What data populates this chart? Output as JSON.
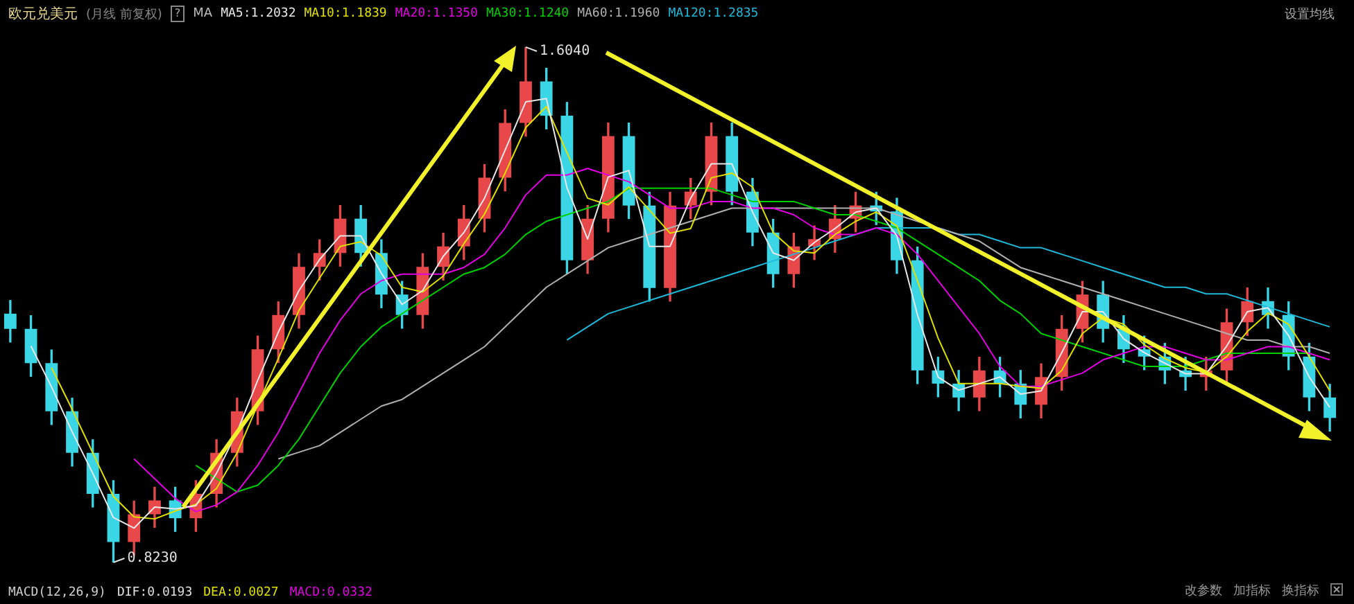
{
  "chart_data": {
    "type": "candlestick",
    "title": "欧元兑美元",
    "subtitle": "(月线 前复权)",
    "legend": "top left",
    "categories": [
      null,
      null,
      null,
      null,
      null,
      null,
      null,
      null,
      null,
      null,
      null,
      null,
      null,
      null,
      null,
      null,
      null,
      null,
      null,
      null,
      null,
      null,
      null,
      null,
      null,
      null,
      null,
      null,
      null,
      null,
      null,
      null,
      null,
      null,
      null,
      null,
      null,
      null,
      null,
      null,
      null,
      null,
      null,
      null,
      null,
      null,
      null,
      null,
      null,
      null,
      null,
      null,
      null,
      null,
      null,
      null,
      null,
      null,
      null,
      null,
      null,
      null,
      null,
      null,
      null
    ],
    "ohlc": [
      [
        1.2,
        1.22,
        1.157,
        1.177
      ],
      [
        1.177,
        1.197,
        1.105,
        1.125
      ],
      [
        1.125,
        1.145,
        1.032,
        1.052
      ],
      [
        1.052,
        1.072,
        0.969,
        0.989
      ],
      [
        0.989,
        1.009,
        0.907,
        0.927
      ],
      [
        0.927,
        0.947,
        0.823,
        0.854
      ],
      [
        0.854,
        0.916,
        0.834,
        0.896
      ],
      [
        0.896,
        0.937,
        0.876,
        0.917
      ],
      [
        0.917,
        0.937,
        0.87,
        0.89
      ],
      [
        0.89,
        0.947,
        0.87,
        0.927
      ],
      [
        0.927,
        1.009,
        0.907,
        0.989
      ],
      [
        0.989,
        1.072,
        0.969,
        1.052
      ],
      [
        1.052,
        1.166,
        1.032,
        1.146
      ],
      [
        1.146,
        1.218,
        1.126,
        1.198
      ],
      [
        1.198,
        1.291,
        1.178,
        1.271
      ],
      [
        1.271,
        1.312,
        1.251,
        1.292
      ],
      [
        1.292,
        1.364,
        1.272,
        1.344
      ],
      [
        1.344,
        1.364,
        1.272,
        1.292
      ],
      [
        1.292,
        1.312,
        1.209,
        1.229
      ],
      [
        1.229,
        1.249,
        1.178,
        1.198
      ],
      [
        1.198,
        1.291,
        1.178,
        1.271
      ],
      [
        1.271,
        1.322,
        1.251,
        1.302
      ],
      [
        1.302,
        1.364,
        1.282,
        1.344
      ],
      [
        1.344,
        1.426,
        1.324,
        1.406
      ],
      [
        1.406,
        1.509,
        1.386,
        1.489
      ],
      [
        1.489,
        1.604,
        1.469,
        1.552
      ],
      [
        1.552,
        1.572,
        1.48,
        1.5
      ],
      [
        1.5,
        1.52,
        1.261,
        1.281
      ],
      [
        1.281,
        1.364,
        1.261,
        1.344
      ],
      [
        1.344,
        1.489,
        1.324,
        1.469
      ],
      [
        1.469,
        1.489,
        1.344,
        1.364
      ],
      [
        1.364,
        1.384,
        1.219,
        1.239
      ],
      [
        1.239,
        1.384,
        1.219,
        1.364
      ],
      [
        1.364,
        1.405,
        1.344,
        1.385
      ],
      [
        1.385,
        1.489,
        1.365,
        1.469
      ],
      [
        1.469,
        1.489,
        1.365,
        1.385
      ],
      [
        1.385,
        1.405,
        1.303,
        1.323
      ],
      [
        1.323,
        1.343,
        1.24,
        1.26
      ],
      [
        1.26,
        1.322,
        1.24,
        1.302
      ],
      [
        1.302,
        1.333,
        1.282,
        1.313
      ],
      [
        1.313,
        1.364,
        1.293,
        1.344
      ],
      [
        1.344,
        1.384,
        1.324,
        1.364
      ],
      [
        1.364,
        1.384,
        1.335,
        1.355
      ],
      [
        1.355,
        1.375,
        1.261,
        1.281
      ],
      [
        1.281,
        1.301,
        1.094,
        1.114
      ],
      [
        1.114,
        1.134,
        1.074,
        1.094
      ],
      [
        1.094,
        1.114,
        1.053,
        1.073
      ],
      [
        1.073,
        1.134,
        1.053,
        1.114
      ],
      [
        1.114,
        1.134,
        1.074,
        1.094
      ],
      [
        1.094,
        1.114,
        1.042,
        1.062
      ],
      [
        1.062,
        1.124,
        1.042,
        1.104
      ],
      [
        1.104,
        1.197,
        1.084,
        1.177
      ],
      [
        1.177,
        1.249,
        1.157,
        1.229
      ],
      [
        1.229,
        1.249,
        1.157,
        1.177
      ],
      [
        1.177,
        1.197,
        1.126,
        1.146
      ],
      [
        1.146,
        1.166,
        1.115,
        1.135
      ],
      [
        1.135,
        1.155,
        1.094,
        1.114
      ],
      [
        1.114,
        1.134,
        1.084,
        1.104
      ],
      [
        1.104,
        1.134,
        1.084,
        1.114
      ],
      [
        1.114,
        1.207,
        1.094,
        1.187
      ],
      [
        1.187,
        1.239,
        1.167,
        1.219
      ],
      [
        1.219,
        1.239,
        1.178,
        1.198
      ],
      [
        1.198,
        1.218,
        1.115,
        1.135
      ],
      [
        1.135,
        1.155,
        1.053,
        1.073
      ],
      [
        1.073,
        1.093,
        1.022,
        1.042
      ]
    ],
    "series": [
      {
        "name": "MA5:1.2032",
        "type": "line",
        "color": "#e8e8e8",
        "values": [
          null,
          1.151,
          1.089,
          1.021,
          0.958,
          0.891,
          0.875,
          0.907,
          0.904,
          0.909,
          0.958,
          1.021,
          1.099,
          1.172,
          1.235,
          1.282,
          1.318,
          1.318,
          1.261,
          1.214,
          1.235,
          1.287,
          1.323,
          1.375,
          1.448,
          1.521,
          1.526,
          1.391,
          1.313,
          1.407,
          1.417,
          1.302,
          1.302,
          1.375,
          1.427,
          1.427,
          1.354,
          1.292,
          1.281,
          1.308,
          1.329,
          1.354,
          1.36,
          1.318,
          1.198,
          1.104,
          1.084,
          1.094,
          1.104,
          1.078,
          1.083,
          1.141,
          1.203,
          1.203,
          1.162,
          1.141,
          1.125,
          1.109,
          1.109,
          1.151,
          1.203,
          1.209,
          1.167,
          1.104,
          1.058
        ]
      },
      {
        "name": "MA10:1.1839",
        "type": "line",
        "color": "#e0e000",
        "values": [
          null,
          null,
          1.118,
          1.055,
          0.989,
          0.923,
          0.892,
          0.889,
          0.901,
          0.911,
          0.935,
          0.989,
          1.062,
          1.132,
          1.205,
          1.254,
          1.302,
          1.309,
          1.288,
          1.24,
          1.233,
          1.257,
          1.306,
          1.351,
          1.413,
          1.482,
          1.514,
          1.444,
          1.375,
          1.365,
          1.392,
          1.357,
          1.322,
          1.329,
          1.406,
          1.413,
          1.392,
          1.323,
          1.295,
          1.292,
          1.32,
          1.34,
          1.354,
          1.333,
          1.25,
          1.163,
          1.094,
          1.094,
          1.094,
          1.09,
          1.087,
          1.114,
          1.17,
          1.194,
          1.184,
          1.153,
          1.132,
          1.118,
          1.111,
          1.135,
          1.173,
          1.201,
          1.184,
          1.135,
          1.083
        ]
      },
      {
        "name": "MA20:1.1350",
        "type": "line",
        "color": "#e000e0",
        "values": [
          null,
          null,
          null,
          null,
          null,
          null,
          0.98,
          0.95,
          0.92,
          0.9,
          0.91,
          0.93,
          0.97,
          1.02,
          1.08,
          1.14,
          1.19,
          1.23,
          1.25,
          1.26,
          1.26,
          1.26,
          1.27,
          1.29,
          1.33,
          1.38,
          1.41,
          1.41,
          1.42,
          1.41,
          1.4,
          1.38,
          1.36,
          1.36,
          1.37,
          1.37,
          1.36,
          1.36,
          1.35,
          1.33,
          1.32,
          1.32,
          1.33,
          1.32,
          1.29,
          1.25,
          1.21,
          1.17,
          1.12,
          1.09,
          1.09,
          1.1,
          1.11,
          1.13,
          1.14,
          1.15,
          1.15,
          1.14,
          1.13,
          1.13,
          1.14,
          1.15,
          1.15,
          1.14,
          1.13
        ]
      },
      {
        "name": "MA30:1.1240",
        "type": "line",
        "color": "#00d000",
        "values": [
          null,
          null,
          null,
          null,
          null,
          null,
          null,
          null,
          null,
          0.97,
          0.95,
          0.93,
          0.94,
          0.97,
          1.01,
          1.06,
          1.11,
          1.15,
          1.18,
          1.2,
          1.22,
          1.24,
          1.26,
          1.27,
          1.29,
          1.32,
          1.34,
          1.35,
          1.36,
          1.37,
          1.39,
          1.39,
          1.39,
          1.39,
          1.39,
          1.38,
          1.37,
          1.37,
          1.37,
          1.36,
          1.35,
          1.35,
          1.34,
          1.33,
          1.31,
          1.29,
          1.27,
          1.25,
          1.22,
          1.2,
          1.17,
          1.16,
          1.15,
          1.14,
          1.13,
          1.12,
          1.12,
          1.12,
          1.13,
          1.14,
          1.14,
          1.14,
          1.14,
          1.14,
          null
        ]
      },
      {
        "name": "MA60:1.1960",
        "type": "line",
        "color": "#b0b0b0",
        "values": [
          null,
          null,
          null,
          null,
          null,
          null,
          null,
          null,
          null,
          null,
          null,
          null,
          null,
          0.98,
          0.99,
          1.0,
          1.02,
          1.04,
          1.06,
          1.07,
          1.09,
          1.11,
          1.13,
          1.15,
          1.18,
          1.21,
          1.24,
          1.26,
          1.28,
          1.3,
          1.31,
          1.32,
          1.33,
          1.34,
          1.35,
          1.36,
          1.36,
          1.36,
          1.36,
          1.36,
          1.36,
          1.36,
          1.36,
          1.35,
          1.34,
          1.33,
          1.32,
          1.31,
          1.29,
          1.27,
          1.26,
          1.25,
          1.24,
          1.23,
          1.22,
          1.21,
          1.2,
          1.19,
          1.18,
          1.17,
          1.16,
          1.16,
          1.15,
          1.15,
          1.14
        ]
      },
      {
        "name": "MA120:1.2835",
        "type": "line",
        "color": "#20b8d8",
        "values": [
          null,
          null,
          null,
          null,
          null,
          null,
          null,
          null,
          null,
          null,
          null,
          null,
          null,
          null,
          null,
          null,
          null,
          null,
          null,
          null,
          null,
          null,
          null,
          null,
          null,
          null,
          null,
          1.16,
          1.18,
          1.2,
          1.21,
          1.22,
          1.23,
          1.24,
          1.25,
          1.26,
          1.27,
          1.28,
          1.29,
          1.3,
          1.31,
          1.32,
          1.33,
          1.33,
          1.33,
          1.33,
          1.32,
          1.32,
          1.31,
          1.3,
          1.3,
          1.29,
          1.28,
          1.27,
          1.26,
          1.25,
          1.24,
          1.24,
          1.23,
          1.23,
          1.22,
          1.21,
          1.2,
          1.19,
          1.18
        ]
      }
    ],
    "annotations": [
      "MA",
      "设置均线",
      "MACD(12,26,9)",
      "DIF:0.0193",
      "DEA:0.0027",
      "MACD:0.0332",
      "改参数",
      "加指标",
      "换指标",
      "1.6040",
      "0.8230",
      "?"
    ]
  }
}
